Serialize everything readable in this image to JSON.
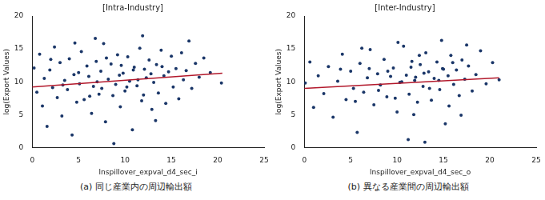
{
  "chart_data": [
    {
      "type": "scatter",
      "title": "[Intra-Industry]",
      "x_label": "lnspillover_expval_d4_sec_i",
      "y_label": "log(Export Values)",
      "caption": "(a) 同じ産業内の周辺輸出額",
      "xlim": [
        0,
        25
      ],
      "xticks": [
        0,
        5,
        10,
        15,
        20,
        25
      ],
      "ylim": [
        0,
        20
      ],
      "yticks": [
        0,
        5,
        10,
        15,
        20
      ],
      "grid": false,
      "series": [
        {
          "type": "scatter",
          "color": "#1a3668",
          "marker": "circle",
          "x": [
            0.2,
            0.5,
            0.8,
            1.1,
            1.3,
            1.6,
            1.9,
            2.2,
            2.4,
            2.7,
            3.0,
            3.2,
            3.5,
            3.8,
            4.0,
            4.3,
            4.5,
            4.8,
            5.1,
            5.3,
            5.6,
            5.9,
            6.1,
            6.4,
            6.6,
            6.9,
            7.2,
            7.4,
            7.7,
            7.9,
            8.2,
            8.5,
            8.7,
            9.0,
            9.2,
            9.5,
            9.8,
            10.0,
            10.3,
            10.5,
            10.8,
            11.0,
            11.3,
            11.6,
            11.8,
            12.1,
            12.3,
            12.6,
            12.9,
            13.1,
            13.4,
            13.6,
            13.9,
            14.2,
            14.4,
            14.7,
            15.0,
            15.2,
            15.5,
            15.8,
            16.1,
            16.3,
            16.6,
            16.9,
            17.2,
            17.6,
            18.0,
            18.5,
            19.2,
            20.4,
            3.3,
            5.0,
            6.2,
            7.0,
            8.0,
            9.4,
            10.2,
            11.4,
            12.0,
            12.8,
            13.3,
            14.0,
            8.8,
            6.8,
            11.9,
            4.6,
            9.6,
            10.9,
            7.5,
            2.0
          ],
          "values": [
            12.1,
            8.4,
            14.2,
            6.3,
            10.5,
            3.2,
            11.8,
            9.1,
            15.3,
            7.6,
            12.9,
            4.8,
            10.2,
            8.8,
            13.5,
            1.9,
            11.1,
            6.9,
            9.7,
            14.6,
            7.3,
            12.4,
            10.8,
            5.2,
            9.3,
            13.1,
            8.1,
            11.6,
            15.8,
            3.9,
            10.4,
            12.7,
            7.9,
            9.6,
            14.1,
            6.2,
            11.3,
            8.6,
            13.8,
            10.1,
            2.7,
            12.2,
            9.4,
            15.1,
            7.1,
            11.9,
            10.6,
            13.3,
            5.8,
            9.9,
            12.6,
            8.3,
            14.8,
            10.9,
            6.7,
            11.5,
            13.9,
            9.2,
            12.0,
            7.4,
            14.4,
            10.3,
            11.7,
            16.2,
            9.0,
            12.8,
            10.7,
            13.6,
            11.4,
            9.8,
            9.5,
            11.4,
            7.8,
            10.0,
            13.6,
            11.0,
            9.2,
            10.3,
            8.0,
            11.2,
            4.1,
            12.3,
            0.6,
            16.6,
            17.0,
            15.9,
            12.5,
            11.8,
            9.0,
            13.4
          ]
        },
        {
          "type": "line",
          "color": "#b2182b",
          "line_style": "solid",
          "x": [
            0,
            20.5
          ],
          "values": [
            9.2,
            11.3
          ]
        }
      ]
    },
    {
      "type": "scatter",
      "title": "[Inter-Industry]",
      "x_label": "lnspillover_expval_d4_sec_o",
      "y_label": "log(Export Values)",
      "caption": "(b) 異なる産業間の周辺輸出額",
      "xlim": [
        0,
        25
      ],
      "xticks": [
        0,
        5,
        10,
        15,
        20,
        25
      ],
      "ylim": [
        0,
        20
      ],
      "yticks": [
        0,
        5,
        10,
        15,
        20
      ],
      "grid": false,
      "series": [
        {
          "type": "scatter",
          "color": "#1a3668",
          "marker": "circle",
          "x": [
            0.1,
            0.6,
            1.0,
            1.5,
            2.1,
            2.6,
            3.1,
            3.6,
            4.1,
            4.5,
            5.0,
            5.3,
            5.7,
            6.0,
            6.4,
            6.8,
            7.1,
            7.5,
            7.9,
            8.2,
            8.6,
            8.9,
            9.3,
            9.6,
            10.0,
            10.3,
            10.7,
            11.0,
            11.3,
            11.6,
            11.9,
            12.2,
            12.5,
            12.8,
            13.1,
            13.4,
            13.7,
            14.0,
            14.3,
            14.6,
            14.9,
            15.2,
            15.5,
            15.8,
            16.1,
            16.4,
            16.7,
            17.0,
            17.3,
            17.7,
            18.1,
            18.5,
            19.0,
            19.6,
            20.3,
            21.0,
            9.0,
            10.5,
            11.5,
            12.0,
            12.9,
            13.5,
            14.5,
            15.0,
            16.0,
            8.0,
            7.0,
            11.2,
            13.0,
            14.8,
            10.1,
            6.2,
            16.9,
            12.4,
            9.8,
            3.9,
            15.6,
            11.8,
            17.5,
            5.5
          ],
          "values": [
            9.8,
            13.0,
            6.1,
            10.9,
            8.2,
            12.3,
            4.6,
            10.1,
            14.2,
            7.3,
            11.6,
            9.0,
            2.3,
            12.8,
            8.4,
            10.6,
            14.9,
            6.5,
            11.2,
            9.5,
            13.4,
            7.7,
            10.8,
            12.1,
            5.4,
            9.9,
            15.4,
            11.0,
            8.1,
            13.1,
            10.2,
            6.9,
            12.6,
            9.3,
            14.4,
            11.5,
            7.2,
            10.5,
            13.0,
            8.8,
            12.0,
            3.6,
            10.9,
            14.0,
            9.6,
            11.8,
            7.9,
            13.3,
            10.4,
            12.4,
            8.6,
            11.1,
            14.7,
            9.7,
            12.9,
            10.3,
            11.6,
            10.0,
            12.2,
            10.7,
            11.3,
            9.0,
            10.2,
            11.9,
            12.9,
            8.7,
            12.0,
            1.2,
            0.8,
            16.3,
            16.0,
            15.1,
            4.9,
            14.0,
            7.5,
            11.9,
            6.3,
            5.0,
            15.6,
            7.0
          ]
        },
        {
          "type": "line",
          "color": "#b2182b",
          "line_style": "solid",
          "x": [
            0,
            21.0
          ],
          "values": [
            9.0,
            10.6
          ]
        }
      ]
    }
  ]
}
